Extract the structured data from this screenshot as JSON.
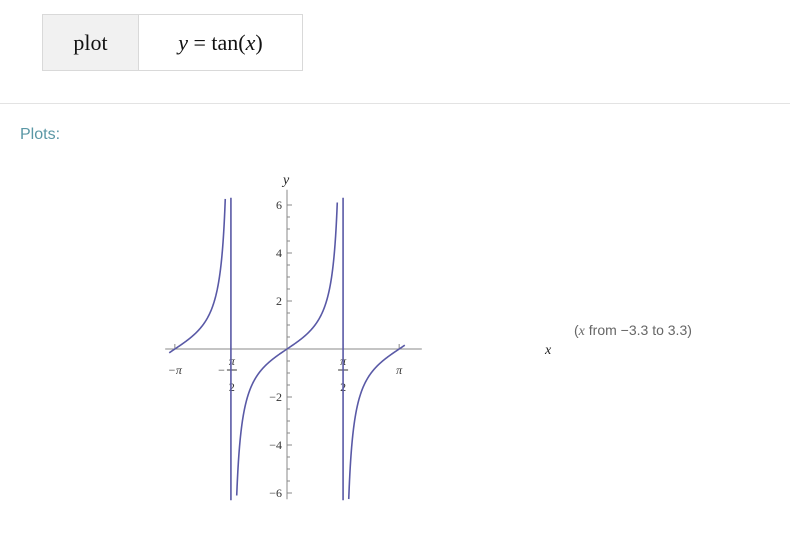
{
  "input": {
    "command": "plot",
    "expression_lhs": "y",
    "expression_eq": " = tan(",
    "expression_var": "x",
    "expression_close": ")"
  },
  "section": {
    "title": "Plots:"
  },
  "range_note": {
    "open": "(",
    "var": "x",
    "text": " from −3.3 to 3.3)"
  },
  "chart_data": {
    "type": "line",
    "function": "tan(x)",
    "xlim": [
      -3.3,
      3.3
    ],
    "ylim": [
      -6.3,
      6.3
    ],
    "xlabel": "x",
    "ylabel": "y",
    "x_ticks": [
      {
        "value": -3.14159,
        "label": "−π"
      },
      {
        "value": -1.5708,
        "label": "−π/2"
      },
      {
        "value": 1.5708,
        "label": "π/2"
      },
      {
        "value": 3.14159,
        "label": "π"
      }
    ],
    "y_ticks": [
      -6,
      -4,
      -2,
      2,
      4,
      6
    ],
    "asymptotes": [
      -1.5708,
      1.5708
    ],
    "series": [
      {
        "color": "#5959a6"
      }
    ],
    "grid": false
  }
}
